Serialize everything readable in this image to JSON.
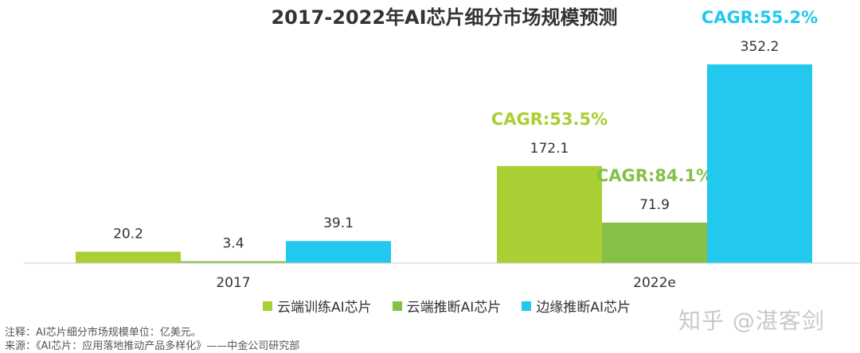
{
  "chart_data": {
    "type": "bar",
    "title": "2017-2022年AI芯片细分市场规模预测",
    "categories": [
      "2017",
      "2022e"
    ],
    "series": [
      {
        "name": "云端训练AI芯片",
        "values": [
          20.2,
          172.1
        ],
        "color": "#a8cf34",
        "cagr": "CAGR:53.5%"
      },
      {
        "name": "云端推断AI芯片",
        "values": [
          3.4,
          71.9
        ],
        "color": "#86c047",
        "cagr": "CAGR:84.1%"
      },
      {
        "name": "边缘推断AI芯片",
        "values": [
          39.1,
          352.2
        ],
        "color": "#22c8ee",
        "cagr": "CAGR:55.2%"
      }
    ],
    "ylim": [
      0,
      352.2
    ],
    "grid": false,
    "legend": "bottom"
  },
  "notes": {
    "line1": "注释：AI芯片细分市场规模单位：亿美元。",
    "line2": "来源：《AI芯片：应用落地推动产品多样化》——中金公司研究部"
  },
  "watermark": "知乎 @湛客剑"
}
